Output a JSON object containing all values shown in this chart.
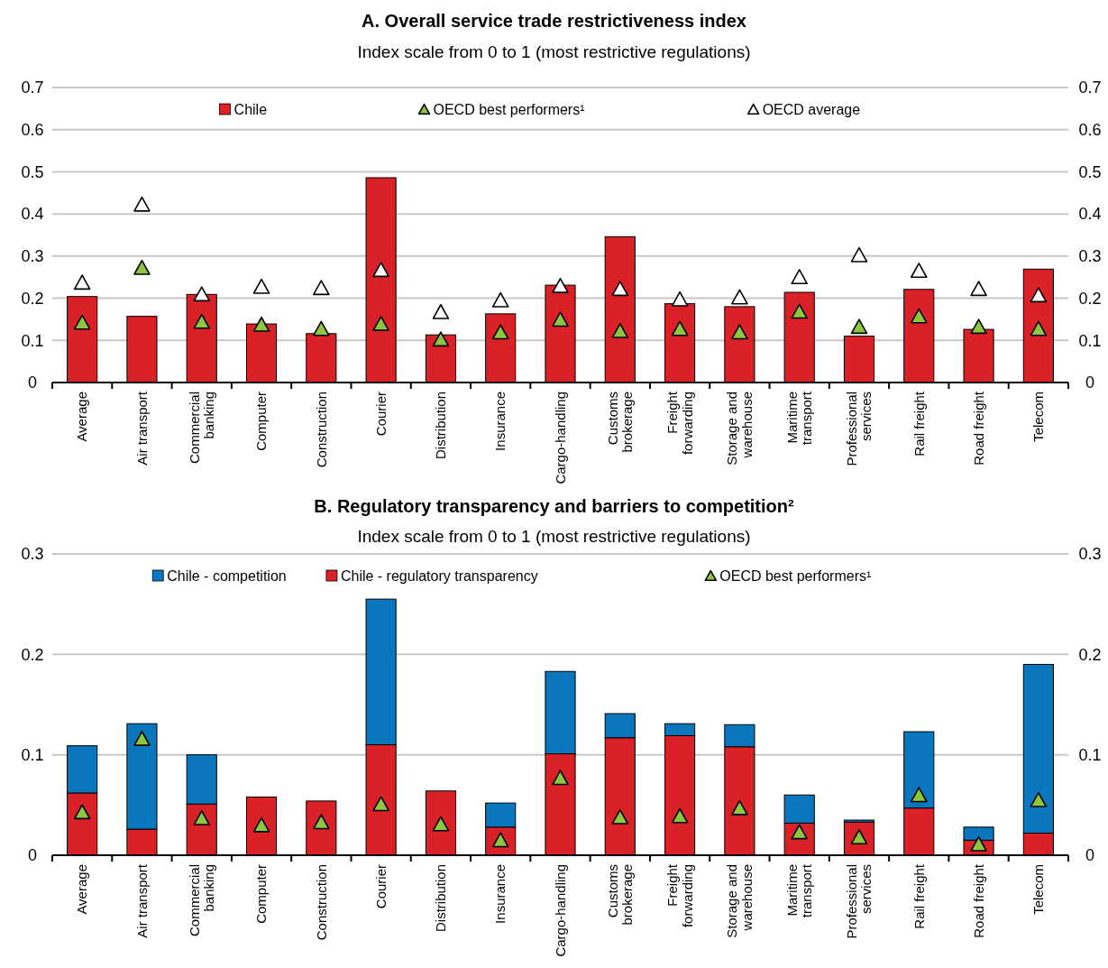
{
  "chart_data": [
    {
      "type": "bar",
      "title": "A. Overall service trade restrictiveness index",
      "subtitle": "Index scale from 0 to 1 (most restrictive regulations)",
      "categories": [
        "Average",
        "Air transport",
        "Commercial\nbanking",
        "Computer",
        "Construction",
        "Courier",
        "Distribution",
        "Insurance",
        "Cargo-handling",
        "Customs\nbrokerage",
        "Freight\nforwarding",
        "Storage and\nwarehouse",
        "Maritime\ntransport",
        "Professional\nservices",
        "Rail freight",
        "Road freight",
        "Telecom"
      ],
      "series": [
        {
          "name": "Chile",
          "type": "bar",
          "color": "#da2128",
          "values": [
            0.204,
            0.157,
            0.209,
            0.139,
            0.116,
            0.486,
            0.113,
            0.163,
            0.231,
            0.346,
            0.187,
            0.18,
            0.214,
            0.11,
            0.221,
            0.126,
            0.269
          ]
        },
        {
          "name": "OECD best performers¹",
          "type": "scatter",
          "marker": "triangle",
          "color": "#8dc63f",
          "x": [
            "Average",
            "Air transport",
            "Commercial\nbanking",
            "Computer",
            "Construction",
            "Courier",
            "Distribution",
            "Insurance",
            "Cargo-handling",
            "Customs\nbrokerage",
            "Freight\nforwarding",
            "Storage and\nwarehouse",
            "Maritime\ntransport",
            "Professional\nservices",
            "Rail freight",
            "Road freight",
            "Telecom"
          ],
          "values": [
            0.14,
            0.27,
            0.142,
            0.135,
            0.125,
            0.137,
            0.1,
            0.117,
            0.147,
            0.12,
            0.125,
            0.117,
            0.166,
            0.13,
            0.155,
            0.13,
            0.125
          ]
        },
        {
          "name": "OECD average",
          "type": "scatter",
          "marker": "triangle",
          "color": "#ffffff",
          "x": [
            "Average",
            "Air transport",
            "Commercial\nbanking",
            "Computer",
            "Construction",
            "Courier",
            "Distribution",
            "Insurance",
            "Cargo-handling",
            "Customs\nbrokerage",
            "Freight\nforwarding",
            "Storage and\nwarehouse",
            "Maritime\ntransport",
            "Professional\nservices",
            "Rail freight",
            "Road freight",
            "Telecom"
          ],
          "values": [
            0.235,
            0.42,
            0.207,
            0.225,
            0.222,
            0.265,
            0.165,
            0.193,
            0.227,
            0.22,
            0.195,
            0.2,
            0.248,
            0.3,
            0.263,
            0.22,
            0.205
          ]
        }
      ],
      "ylim": [
        0,
        0.7
      ],
      "yticks": [
        0,
        0.1,
        0.2,
        0.3,
        0.4,
        0.5,
        0.6,
        0.7
      ],
      "y2lim": [
        0,
        0.7
      ],
      "y2ticks": [
        0,
        0.1,
        0.2,
        0.3,
        0.4,
        0.5,
        0.6,
        0.7
      ],
      "grid": "y",
      "legend": "top"
    },
    {
      "type": "bar",
      "title": "B. Regulatory transparency and barriers to competition²",
      "subtitle": "Index scale from 0 to 1 (most restrictive regulations)",
      "stacked": true,
      "categories": [
        "Average",
        "Air transport",
        "Commercial\nbanking",
        "Computer",
        "Construction",
        "Courier",
        "Distribution",
        "Insurance",
        "Cargo-handling",
        "Customs\nbrokerage",
        "Freight\nforwarding",
        "Storage and\nwarehouse",
        "Maritime\ntransport",
        "Professional\nservices",
        "Rail freight",
        "Road freight",
        "Telecom"
      ],
      "series": [
        {
          "name": "Chile - regulatory transparency",
          "type": "bar",
          "color": "#da2128",
          "values": [
            0.062,
            0.026,
            0.051,
            0.058,
            0.054,
            0.11,
            0.064,
            0.028,
            0.101,
            0.117,
            0.119,
            0.108,
            0.032,
            0.033,
            0.047,
            0.015,
            0.022
          ]
        },
        {
          "name": "Chile - competition",
          "type": "bar",
          "color": "#0a76bd",
          "values": [
            0.047,
            0.105,
            0.049,
            0,
            0,
            0.145,
            0,
            0.024,
            0.082,
            0.024,
            0.012,
            0.022,
            0.028,
            0.002,
            0.076,
            0.013,
            0.168
          ]
        },
        {
          "name": "OECD best performers¹",
          "type": "scatter",
          "marker": "triangle",
          "color": "#8dc63f",
          "x": [
            "Average",
            "Air transport",
            "Commercial\nbanking",
            "Computer",
            "Construction",
            "Courier",
            "Distribution",
            "Insurance",
            "Cargo-handling",
            "Customs\nbrokerage",
            "Freight\nforwarding",
            "Storage and\nwarehouse",
            "Maritime\ntransport",
            "Professional\nservices",
            "Rail freight",
            "Road freight",
            "Telecom"
          ],
          "values": [
            0.042,
            0.115,
            0.036,
            0.029,
            0.032,
            0.05,
            0.03,
            0.014,
            0.076,
            0.037,
            0.038,
            0.046,
            0.022,
            0.017,
            0.059,
            0.01,
            0.054
          ]
        }
      ],
      "ylim": [
        0,
        0.3
      ],
      "yticks": [
        0,
        0.1,
        0.2,
        0.3
      ],
      "y2lim": [
        0,
        0.3
      ],
      "y2ticks": [
        0,
        0.1,
        0.2,
        0.3
      ],
      "grid": "y",
      "legend": "top"
    }
  ]
}
